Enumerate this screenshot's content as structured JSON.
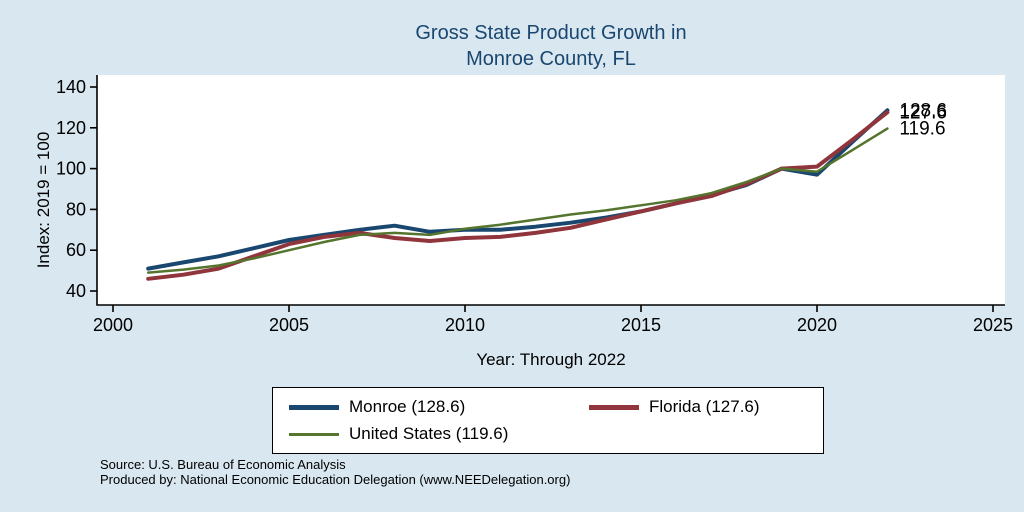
{
  "title": {
    "text": "Gross State Product Growth in\nMonroe County, FL",
    "color": "#1a476f"
  },
  "chart_data": {
    "type": "line",
    "title": "Gross State Product Growth in Monroe County, FL",
    "xlabel": "Year: Through 2022",
    "ylabel": "Index: 2019 = 100",
    "xlim": [
      2000,
      2025
    ],
    "ylim": [
      40,
      140
    ],
    "x_ticks": [
      2000,
      2005,
      2010,
      2015,
      2020,
      2025
    ],
    "y_ticks": [
      40,
      60,
      80,
      100,
      120,
      140
    ],
    "grid": false,
    "legend_position": "bottom",
    "x": [
      2001,
      2002,
      2003,
      2004,
      2005,
      2006,
      2007,
      2008,
      2009,
      2010,
      2011,
      2012,
      2013,
      2014,
      2015,
      2016,
      2017,
      2018,
      2019,
      2020,
      2021,
      2022
    ],
    "series": [
      {
        "name": "Monroe",
        "color": "#1a476f",
        "width": 4,
        "end_label": "128.6",
        "values": [
          51,
          54,
          57,
          61,
          65,
          67.5,
          70,
          72,
          69,
          70,
          70,
          71.5,
          73.5,
          76,
          79,
          83,
          87,
          92,
          100,
          97,
          113,
          128.6
        ]
      },
      {
        "name": "Florida",
        "color": "#90353b",
        "width": 4,
        "end_label": "127.6",
        "values": [
          46,
          48,
          51,
          57,
          63,
          66.5,
          68.5,
          66,
          64.5,
          66,
          66.5,
          68.5,
          71,
          75,
          79,
          83,
          86.5,
          92.5,
          100,
          101,
          114,
          127.6
        ]
      },
      {
        "name": "United States",
        "color": "#55752f",
        "width": 2.5,
        "end_label": "119.6",
        "values": [
          49,
          50.5,
          52.5,
          56,
          60,
          64,
          67.5,
          68.5,
          67.5,
          70.5,
          72.5,
          75,
          77.5,
          79.5,
          82,
          84.5,
          88,
          93.5,
          100,
          98.5,
          109,
          119.6
        ]
      }
    ]
  },
  "legend": {
    "entries": [
      {
        "label": "Monroe  (128.6)",
        "color": "#1a476f"
      },
      {
        "label": "Florida (127.6)",
        "color": "#90353b"
      },
      {
        "label": "United States (119.6)",
        "color": "#55752f"
      }
    ]
  },
  "footer": {
    "line1": "Source: U.S. Bureau of Economic Analysis",
    "line2": "Produced by: National Economic Education Delegation (www.NEEDelegation.org)"
  }
}
